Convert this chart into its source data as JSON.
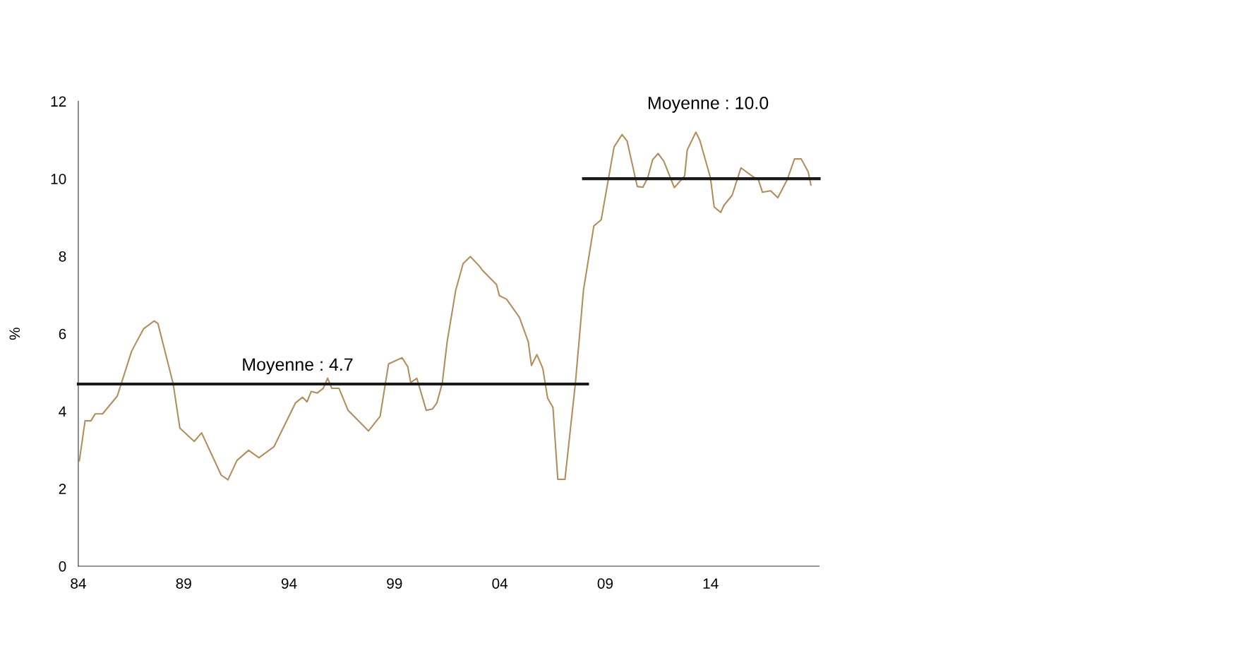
{
  "chart_data": {
    "type": "line",
    "ylabel": "%",
    "xlim": [
      1984,
      2019.15
    ],
    "xticks": [
      {
        "value": 1984,
        "label": "84"
      },
      {
        "value": 1989,
        "label": "89"
      },
      {
        "value": 1994,
        "label": "94"
      },
      {
        "value": 1999,
        "label": "99"
      },
      {
        "value": 2004,
        "label": "04"
      },
      {
        "value": 2009,
        "label": "09"
      },
      {
        "value": 2014,
        "label": "14"
      }
    ],
    "ylim": [
      0,
      12
    ],
    "yticks": [
      0,
      2,
      4,
      6,
      8,
      10,
      12
    ],
    "grid": false,
    "legend": false,
    "marker": "none",
    "line_style": "solid",
    "series": [
      {
        "color": "#b38e5d",
        "x": [
          1984.05,
          1984.32,
          1984.6,
          1984.8,
          1985.15,
          1985.85,
          1986.53,
          1987.1,
          1987.6,
          1987.78,
          1988.5,
          1988.82,
          1989.5,
          1989.85,
          1990.78,
          1991.1,
          1991.53,
          1992.08,
          1992.57,
          1993.28,
          1994.3,
          1994.64,
          1994.85,
          1995.05,
          1995.34,
          1995.62,
          1995.83,
          1996.03,
          1996.37,
          1996.8,
          1997.77,
          1998.32,
          1998.72,
          1999.36,
          1999.63,
          1999.77,
          2000.06,
          2000.51,
          2000.81,
          2001.01,
          2001.27,
          2001.5,
          2001.91,
          2002.26,
          2002.6,
          2003.02,
          2003.17,
          2003.84,
          2003.98,
          2004.32,
          2004.93,
          2005.35,
          2005.5,
          2005.76,
          2006.04,
          2006.27,
          2006.52,
          2006.75,
          2007.09,
          2007.59,
          2007.97,
          2008.46,
          2008.81,
          2009.42,
          2009.8,
          2010.04,
          2010.52,
          2010.79,
          2011.02,
          2011.25,
          2011.51,
          2011.78,
          2012.28,
          2012.77,
          2012.89,
          2013.3,
          2013.49,
          2013.99,
          2014.17,
          2014.48,
          2014.63,
          2015.02,
          2015.44,
          2015.97,
          2016.27,
          2016.46,
          2016.85,
          2017.19,
          2017.64,
          2017.98,
          2018.3,
          2018.63,
          2018.76
        ],
        "values": [
          2.72,
          3.75,
          3.75,
          3.93,
          3.93,
          4.39,
          5.55,
          6.13,
          6.33,
          6.26,
          4.71,
          3.56,
          3.22,
          3.44,
          2.35,
          2.23,
          2.73,
          2.99,
          2.8,
          3.08,
          4.21,
          4.36,
          4.24,
          4.51,
          4.47,
          4.59,
          4.85,
          4.59,
          4.59,
          4.02,
          3.49,
          3.87,
          5.22,
          5.38,
          5.15,
          4.74,
          4.85,
          4.02,
          4.06,
          4.21,
          4.73,
          5.79,
          7.13,
          7.81,
          7.99,
          7.75,
          7.64,
          7.27,
          6.98,
          6.89,
          6.42,
          5.79,
          5.18,
          5.46,
          5.1,
          4.33,
          4.1,
          2.24,
          2.24,
          4.75,
          7.13,
          8.78,
          8.94,
          10.82,
          11.14,
          10.97,
          9.8,
          9.78,
          10.03,
          10.49,
          10.65,
          10.45,
          9.77,
          10.07,
          10.74,
          11.2,
          10.99,
          10.03,
          9.27,
          9.13,
          9.31,
          9.57,
          10.28,
          10.07,
          9.97,
          9.65,
          9.69,
          9.51,
          9.98,
          10.51,
          10.51,
          10.18,
          9.84
        ]
      },
      {
        "color": "#1a1a1a",
        "x": [
          1984,
          2008.16
        ],
        "values": [
          4.7,
          4.7
        ]
      },
      {
        "color": "#1a1a1a",
        "x": [
          2007.97,
          2019.15
        ],
        "values": [
          10.0,
          10.0
        ]
      }
    ],
    "annotations": [
      {
        "text": "Moyenne : 4.7",
        "x": 1994.4,
        "y": 4.7
      },
      "Moyenne : 10.0"
    ]
  }
}
